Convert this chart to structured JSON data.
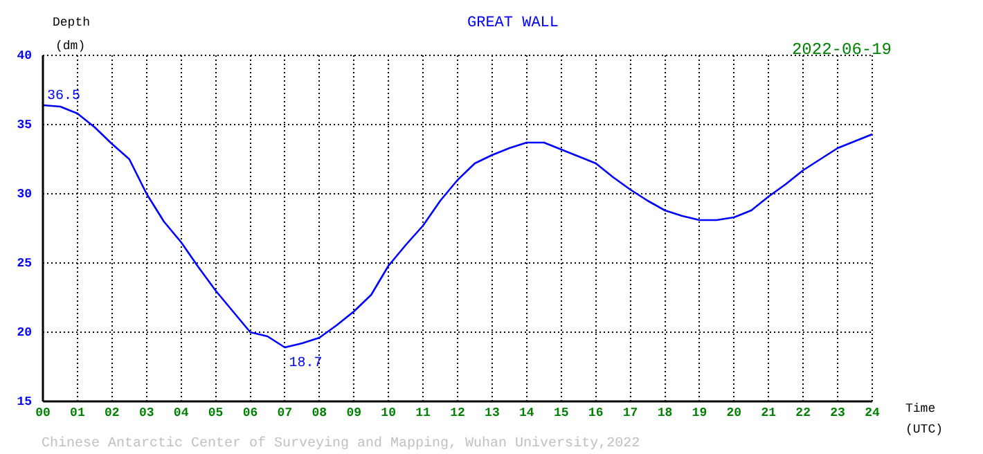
{
  "chart_data": {
    "type": "line",
    "title": "GREAT WALL",
    "xlabel": "Time (UTC)",
    "ylabel": "Depth (dm)",
    "annotations": [
      "2022-06-19",
      {
        "text": "36.5",
        "x": 0,
        "y": 36.5
      },
      {
        "text": "18.7",
        "x": 7,
        "y": 18.7
      },
      "Chinese Antarctic Center of Surveying and Mapping, Wuhan University,2022"
    ],
    "x": [
      0,
      0.5,
      1,
      1.5,
      2,
      2.5,
      3,
      3.5,
      4,
      4.5,
      5,
      5.5,
      6,
      6.5,
      7,
      7.5,
      8,
      8.5,
      9,
      9.5,
      10,
      10.5,
      11,
      11.5,
      12,
      12.5,
      13,
      13.5,
      14,
      14.5,
      15,
      15.5,
      16,
      16.5,
      17,
      17.5,
      18,
      18.5,
      19,
      19.5,
      20,
      20.5,
      21,
      21.5,
      22,
      22.5,
      23,
      23.5,
      24
    ],
    "series": [
      {
        "color": "#0000ff",
        "values": [
          36.4,
          36.3,
          35.8,
          34.8,
          33.6,
          32.5,
          30.0,
          28.0,
          26.5,
          24.7,
          23.0,
          21.5,
          20.0,
          19.7,
          18.9,
          19.2,
          19.6,
          20.5,
          21.5,
          22.7,
          24.8,
          26.3,
          27.7,
          29.5,
          31.0,
          32.2,
          32.8,
          33.3,
          33.7,
          33.7,
          33.2,
          32.7,
          32.2,
          31.2,
          30.3,
          29.5,
          28.8,
          28.4,
          28.1,
          28.1,
          28.3,
          28.8,
          29.8,
          30.7,
          31.7,
          32.5,
          33.3,
          33.8,
          34.3
        ]
      }
    ],
    "xlim": [
      0,
      24
    ],
    "xticks": [
      {
        "value": 0,
        "label": "00"
      },
      {
        "value": 1,
        "label": "01"
      },
      {
        "value": 2,
        "label": "02"
      },
      {
        "value": 3,
        "label": "03"
      },
      {
        "value": 4,
        "label": "04"
      },
      {
        "value": 5,
        "label": "05"
      },
      {
        "value": 6,
        "label": "06"
      },
      {
        "value": 7,
        "label": "07"
      },
      {
        "value": 8,
        "label": "08"
      },
      {
        "value": 9,
        "label": "09"
      },
      10,
      11,
      12,
      13,
      14,
      15,
      16,
      17,
      18,
      19,
      20,
      21,
      22,
      23,
      24
    ],
    "ylim": [
      15,
      40
    ],
    "yticks": [
      15,
      20,
      25,
      30,
      35,
      40
    ],
    "grid": true,
    "legend": false,
    "marker": "none",
    "line_style": "solid"
  }
}
